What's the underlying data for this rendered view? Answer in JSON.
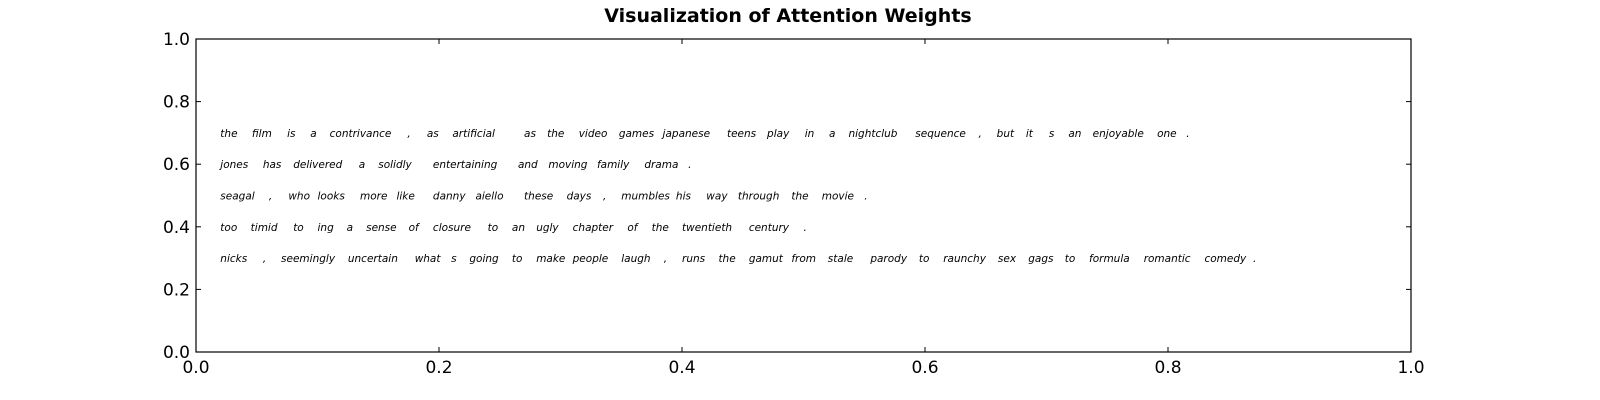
{
  "chart_data": {
    "type": "text",
    "title": "Visualization of Attention Weights",
    "xlabel": "",
    "ylabel": "",
    "xlim": [
      0.0,
      1.0
    ],
    "ylim": [
      0.0,
      1.0
    ],
    "x_ticks": [
      "0.0",
      "0.2",
      "0.4",
      "0.6",
      "0.8",
      "1.0"
    ],
    "y_ticks": [
      "0.0",
      "0.2",
      "0.4",
      "0.6",
      "0.8",
      "1.0"
    ],
    "grid": false,
    "sentences": [
      {
        "y": 0.7,
        "words": [
          {
            "text": "the",
            "x": 0.02
          },
          {
            "text": "film",
            "x": 0.046
          },
          {
            "text": "is",
            "x": 0.075
          },
          {
            "text": "a",
            "x": 0.094
          },
          {
            "text": "contrivance",
            "x": 0.11
          },
          {
            "text": ",",
            "x": 0.174
          },
          {
            "text": "as",
            "x": 0.19
          },
          {
            "text": "artificial",
            "x": 0.211
          },
          {
            "text": "as",
            "x": 0.27
          },
          {
            "text": "the",
            "x": 0.289
          },
          {
            "text": "video",
            "x": 0.315
          },
          {
            "text": "games",
            "x": 0.348
          },
          {
            "text": "japanese",
            "x": 0.384
          },
          {
            "text": "teens",
            "x": 0.437
          },
          {
            "text": "play",
            "x": 0.47
          },
          {
            "text": "in",
            "x": 0.501
          },
          {
            "text": "a",
            "x": 0.521
          },
          {
            "text": "nightclub",
            "x": 0.537
          },
          {
            "text": "sequence",
            "x": 0.592
          },
          {
            "text": ",",
            "x": 0.644
          },
          {
            "text": "but",
            "x": 0.659
          },
          {
            "text": "it",
            "x": 0.683
          },
          {
            "text": "s",
            "x": 0.702
          },
          {
            "text": "an",
            "x": 0.718
          },
          {
            "text": "enjoyable",
            "x": 0.738
          },
          {
            "text": "one",
            "x": 0.791
          },
          {
            "text": ".",
            "x": 0.815
          }
        ]
      },
      {
        "y": 0.6,
        "words": [
          {
            "text": "jones",
            "x": 0.02
          },
          {
            "text": "has",
            "x": 0.055
          },
          {
            "text": "delivered",
            "x": 0.08
          },
          {
            "text": "a",
            "x": 0.134
          },
          {
            "text": "solidly",
            "x": 0.15
          },
          {
            "text": "entertaining",
            "x": 0.195
          },
          {
            "text": "and",
            "x": 0.265
          },
          {
            "text": "moving",
            "x": 0.29
          },
          {
            "text": "family",
            "x": 0.33
          },
          {
            "text": "drama",
            "x": 0.369
          },
          {
            "text": ".",
            "x": 0.405
          }
        ]
      },
      {
        "y": 0.5,
        "words": [
          {
            "text": "seagal",
            "x": 0.02
          },
          {
            "text": ",",
            "x": 0.06
          },
          {
            "text": "who",
            "x": 0.076
          },
          {
            "text": "looks",
            "x": 0.1
          },
          {
            "text": "more",
            "x": 0.135
          },
          {
            "text": "like",
            "x": 0.165
          },
          {
            "text": "danny",
            "x": 0.195
          },
          {
            "text": "aiello",
            "x": 0.23
          },
          {
            "text": "these",
            "x": 0.27
          },
          {
            "text": "days",
            "x": 0.305
          },
          {
            "text": ",",
            "x": 0.335
          },
          {
            "text": "mumbles",
            "x": 0.35
          },
          {
            "text": "his",
            "x": 0.395
          },
          {
            "text": "way",
            "x": 0.42
          },
          {
            "text": "through",
            "x": 0.446
          },
          {
            "text": "the",
            "x": 0.49
          },
          {
            "text": "movie",
            "x": 0.515
          },
          {
            "text": ".",
            "x": 0.55
          }
        ]
      },
      {
        "y": 0.4,
        "words": [
          {
            "text": "too",
            "x": 0.02
          },
          {
            "text": "timid",
            "x": 0.045
          },
          {
            "text": "to",
            "x": 0.08
          },
          {
            "text": "ing",
            "x": 0.1
          },
          {
            "text": "a",
            "x": 0.124
          },
          {
            "text": "sense",
            "x": 0.14
          },
          {
            "text": "of",
            "x": 0.175
          },
          {
            "text": "closure",
            "x": 0.195
          },
          {
            "text": "to",
            "x": 0.24
          },
          {
            "text": "an",
            "x": 0.26
          },
          {
            "text": "ugly",
            "x": 0.28
          },
          {
            "text": "chapter",
            "x": 0.31
          },
          {
            "text": "of",
            "x": 0.355
          },
          {
            "text": "the",
            "x": 0.375
          },
          {
            "text": "twentieth",
            "x": 0.4
          },
          {
            "text": "century",
            "x": 0.455
          },
          {
            "text": ".",
            "x": 0.5
          }
        ]
      },
      {
        "y": 0.3,
        "words": [
          {
            "text": "nicks",
            "x": 0.02
          },
          {
            "text": ",",
            "x": 0.055
          },
          {
            "text": "seemingly",
            "x": 0.07
          },
          {
            "text": "uncertain",
            "x": 0.125
          },
          {
            "text": "what",
            "x": 0.18
          },
          {
            "text": "s",
            "x": 0.21
          },
          {
            "text": "going",
            "x": 0.225
          },
          {
            "text": "to",
            "x": 0.26
          },
          {
            "text": "make",
            "x": 0.28
          },
          {
            "text": "people",
            "x": 0.31
          },
          {
            "text": "laugh",
            "x": 0.35
          },
          {
            "text": ",",
            "x": 0.385
          },
          {
            "text": "runs",
            "x": 0.4
          },
          {
            "text": "the",
            "x": 0.43
          },
          {
            "text": "gamut",
            "x": 0.455
          },
          {
            "text": "from",
            "x": 0.49
          },
          {
            "text": "stale",
            "x": 0.52
          },
          {
            "text": "parody",
            "x": 0.555
          },
          {
            "text": "to",
            "x": 0.595
          },
          {
            "text": "raunchy",
            "x": 0.615
          },
          {
            "text": "sex",
            "x": 0.66
          },
          {
            "text": "gags",
            "x": 0.685
          },
          {
            "text": "to",
            "x": 0.715
          },
          {
            "text": "formula",
            "x": 0.735
          },
          {
            "text": "romantic",
            "x": 0.78
          },
          {
            "text": "comedy",
            "x": 0.83
          },
          {
            "text": ".",
            "x": 0.87
          }
        ]
      }
    ]
  }
}
